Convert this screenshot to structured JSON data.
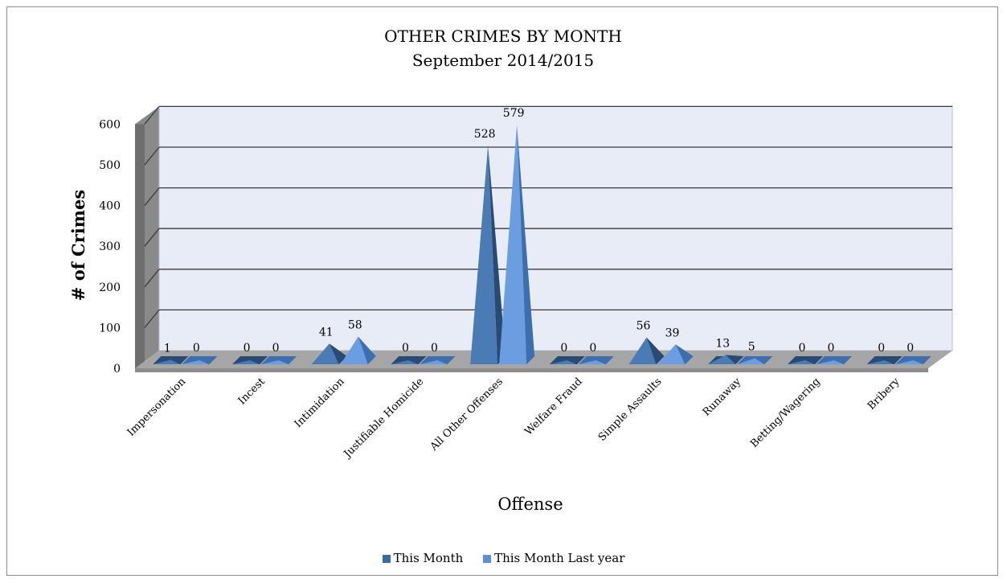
{
  "chart_data": {
    "type": "bar",
    "title": "OTHER CRIMES BY MONTH",
    "subtitle": "September 2014/2015",
    "xlabel": "Offense",
    "ylabel": "# of Crimes",
    "ylim": [
      0,
      600
    ],
    "yticks": [
      "0",
      "100",
      "200",
      "300",
      "400",
      "500",
      "600"
    ],
    "grid": true,
    "legend_position": "bottom",
    "categories": [
      "Impersonation",
      "Incest",
      "Intimidation",
      "Justifiable Homicide",
      "All Other Offenses",
      "Welfare Fraud",
      "Simple Assaults",
      "Runaway",
      "Betting/Wagering",
      "Bribery"
    ],
    "series": [
      {
        "name": "This Month",
        "values": [
          1,
          0,
          41,
          0,
          528,
          0,
          56,
          13,
          0,
          0
        ],
        "color": "#3d6a9e",
        "label_text": [
          "1",
          "0",
          "41",
          "0",
          "528",
          "0",
          "56",
          "13",
          "0",
          "0"
        ]
      },
      {
        "name": "This Month Last year",
        "values": [
          0,
          0,
          58,
          0,
          579,
          0,
          39,
          5,
          0,
          0
        ],
        "color": "#5b8fd6",
        "label_text": [
          "0",
          "0",
          "58",
          "0",
          "579",
          "0",
          "39",
          "5",
          "0",
          "0"
        ]
      }
    ]
  }
}
